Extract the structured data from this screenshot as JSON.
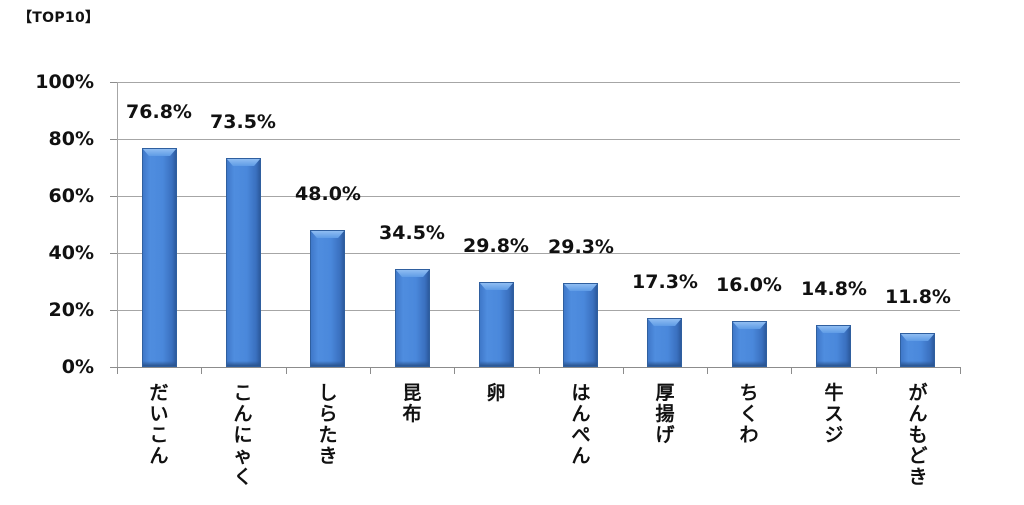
{
  "title": "【TOP10】",
  "chart_data": {
    "type": "bar",
    "title": "【TOP10】",
    "xlabel": "",
    "ylabel": "",
    "ylim": [
      0,
      100
    ],
    "y_ticks": [
      "0%",
      "20%",
      "40%",
      "60%",
      "80%",
      "100%"
    ],
    "grid": true,
    "legend": null,
    "bar_color": "#4a88db",
    "categories": [
      "だいこん",
      "こんにゃく",
      "しらたき",
      "昆布",
      "卵",
      "はんぺん",
      "厚揚げ",
      "ちくわ",
      "牛スジ",
      "がんもどき"
    ],
    "values": [
      76.8,
      73.5,
      48.0,
      34.5,
      29.8,
      29.3,
      17.3,
      16.0,
      14.8,
      11.8
    ],
    "value_labels": [
      "76.8%",
      "73.5%",
      "48.0%",
      "34.5%",
      "29.8%",
      "29.3%",
      "17.3%",
      "16.0%",
      "14.8%",
      "11.8%"
    ]
  }
}
